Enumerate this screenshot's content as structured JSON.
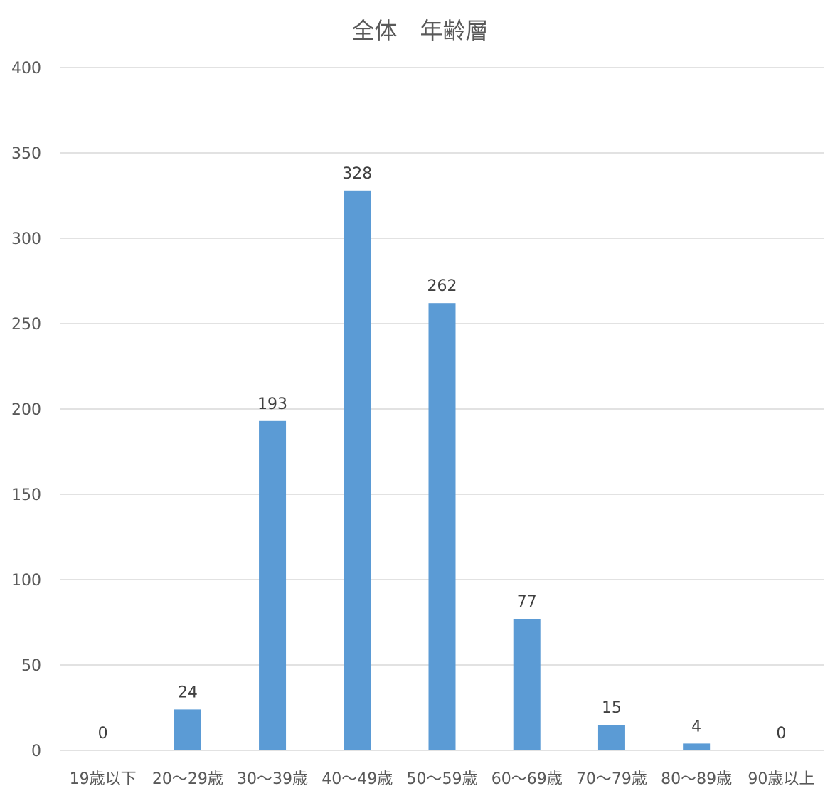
{
  "chart_data": {
    "type": "bar",
    "title": "全体　年齢層",
    "xlabel": "",
    "ylabel": "",
    "categories": [
      "19歳以下",
      "20〜29歳",
      "30〜39歳",
      "40〜49歳",
      "50〜59歳",
      "60〜69歳",
      "70〜79歳",
      "80〜89歳",
      "90歳以上"
    ],
    "values": [
      0,
      24,
      193,
      328,
      262,
      77,
      15,
      4,
      0
    ],
    "ylim": [
      0,
      400
    ],
    "yticks": [
      0,
      50,
      100,
      150,
      200,
      250,
      300,
      350,
      400
    ],
    "grid": true,
    "legend": "none",
    "data_labels": true,
    "colors": {
      "bar": "#5B9BD5",
      "grid": "#D9D9D9",
      "axis_text": "#595959",
      "label_text": "#404040"
    }
  }
}
